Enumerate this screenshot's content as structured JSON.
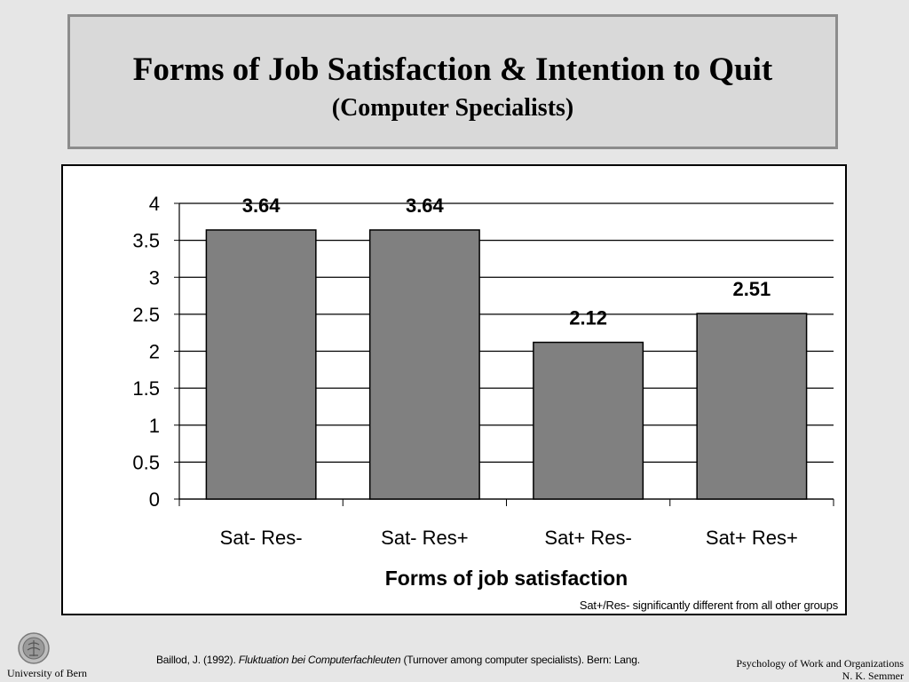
{
  "title": {
    "main": "Forms of Job Satisfaction & Intention to Quit",
    "sub": "(Computer Specialists)"
  },
  "chart_data": {
    "type": "bar",
    "categories": [
      "Sat- Res-",
      "Sat- Res+",
      "Sat+ Res-",
      "Sat+ Res+"
    ],
    "values": [
      3.64,
      3.64,
      2.12,
      2.51
    ],
    "value_labels": [
      "3.64",
      "3.64",
      "2.12",
      "2.51"
    ],
    "xlabel": "Forms of job satisfaction",
    "ylabel": "",
    "ylim": [
      0,
      4
    ],
    "yticks": [
      "0",
      "0.5",
      "1",
      "1.5",
      "2",
      "2.5",
      "3",
      "3.5",
      "4"
    ],
    "ytick_values": [
      0,
      0.5,
      1,
      1.5,
      2,
      2.5,
      3,
      3.5,
      4
    ],
    "grid": true,
    "bar_color": "#808080",
    "note": "Sat+/Res- significantly different from all other groups"
  },
  "footer": {
    "university": "University of Bern",
    "citation_prefix": "Baillod, J. (1992). ",
    "citation_title": "Fluktuation bei Computerfachleuten",
    "citation_suffix": " (Turnover among computer specialists). Bern: Lang.",
    "dept": "Psychology of Work and Organizations",
    "author": "N. K. Semmer"
  }
}
